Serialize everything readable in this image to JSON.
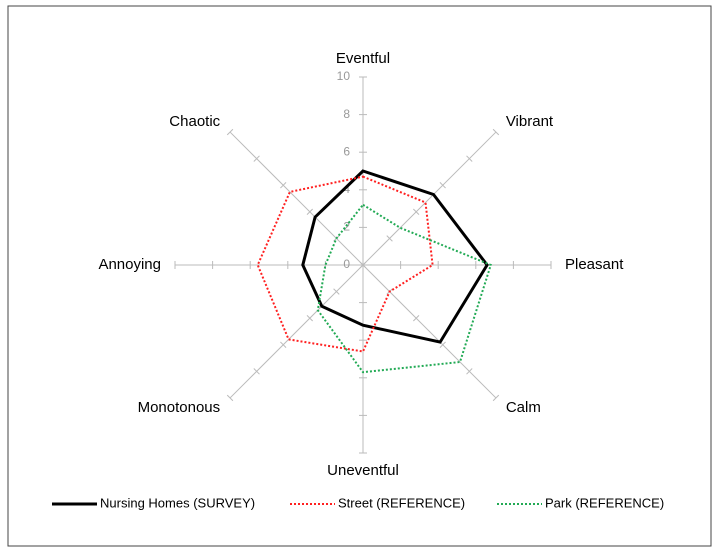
{
  "chart_data": {
    "type": "radar",
    "categories": [
      "Eventful",
      "Vibrant",
      "Pleasant",
      "Calm",
      "Uneventful",
      "Monotonous",
      "Annoying",
      "Chaotic"
    ],
    "series": [
      {
        "name": "Nursing Homes (SURVEY)",
        "color": "#000000",
        "dash": "solid",
        "values": [
          5.0,
          5.3,
          6.6,
          5.8,
          3.2,
          3.1,
          3.2,
          3.6
        ]
      },
      {
        "name": "Street (REFERENCE)",
        "color": "#ff2020",
        "dash": "dotted",
        "values": [
          4.7,
          4.7,
          3.7,
          2.0,
          4.6,
          5.6,
          5.6,
          5.5
        ]
      },
      {
        "name": "Park (REFERENCE)",
        "color": "#22aa55",
        "dash": "dotted",
        "values": [
          3.2,
          2.8,
          6.8,
          7.3,
          5.7,
          3.4,
          2.0,
          2.0
        ]
      }
    ],
    "rlim": [
      0,
      10
    ],
    "rticks": [
      0,
      2,
      4,
      6,
      8,
      10
    ],
    "legend": "bottom"
  }
}
